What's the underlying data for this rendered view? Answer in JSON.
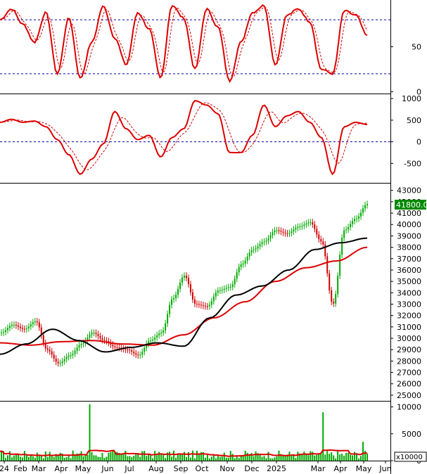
{
  "chart_data": [
    {
      "panel": "stochastic-oscillator",
      "type": "line",
      "ylim": [
        -2,
        102
      ],
      "y_ticks": [
        "50",
        "0"
      ],
      "reference_lines": [
        80,
        20
      ],
      "grid": false,
      "colors": {
        "main": "#cc0000",
        "signal": "#cc0000",
        "reference": "#0000aa"
      }
    },
    {
      "panel": "macd",
      "type": "line",
      "ylim": [
        -950,
        1100
      ],
      "y_ticks": [
        "1000",
        "500",
        "0",
        "-500"
      ],
      "reference_lines": [
        0
      ],
      "grid": false,
      "colors": {
        "main": "#cc0000",
        "signal": "#cc0000",
        "reference": "#0000aa"
      }
    },
    {
      "panel": "price",
      "type": "bar",
      "ylim": [
        24500,
        43600
      ],
      "y_ticks": [
        "43000",
        "42000",
        "41000",
        "40000",
        "39000",
        "38000",
        "37000",
        "36000",
        "35000",
        "34000",
        "33000",
        "32000",
        "31000",
        "30000",
        "29000",
        "28000",
        "27000",
        "26000",
        "25000"
      ],
      "last_price_label": "41800.00",
      "last_price": 41800,
      "grid": false,
      "colors": {
        "up": "#00aa00",
        "down": "#cc0000",
        "ma_fast": "#000000",
        "ma_slow": "#dd0000",
        "price_tag": "#008800"
      }
    },
    {
      "panel": "volume",
      "type": "bar",
      "ylim": [
        0,
        11000
      ],
      "y_ticks": [
        "10000",
        "5000",
        "0"
      ],
      "unit_label": "x10000",
      "grid": false,
      "colors": {
        "bar": "#00aa00",
        "average": "#dd0000"
      }
    }
  ],
  "x_axis": {
    "labels": [
      "24",
      "Feb",
      "Mar",
      "Apr",
      "May",
      "Jun",
      "Jul",
      "Aug",
      "Sep",
      "Oct",
      "Nov",
      "Dec",
      "2025",
      "Mar",
      "Apr",
      "May",
      "Jun"
    ]
  }
}
